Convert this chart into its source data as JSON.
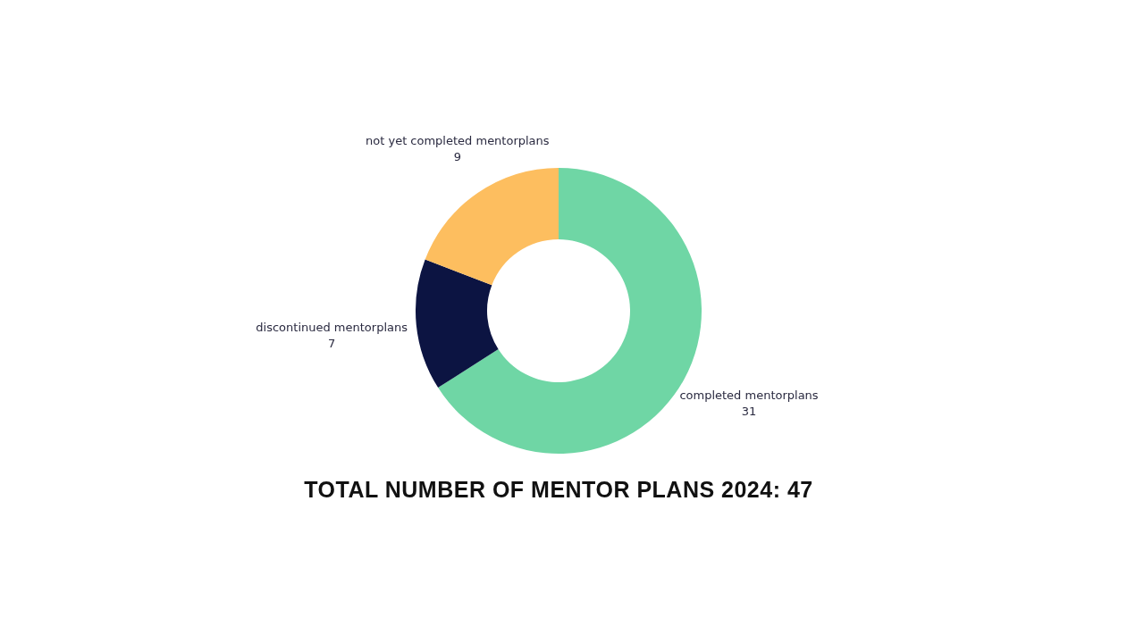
{
  "chart_data": {
    "type": "donut",
    "title": "TOTAL NUMBER OF MENTOR PLANS 2024: 47",
    "categories": [
      "completed mentorplans",
      "discontinued mentorplans",
      "not yet completed mentorplans"
    ],
    "values": [
      31,
      7,
      9
    ],
    "colors": [
      "#6fd6a5",
      "#0c1442",
      "#fdbe5f"
    ],
    "data_labels": true,
    "legend": false
  }
}
